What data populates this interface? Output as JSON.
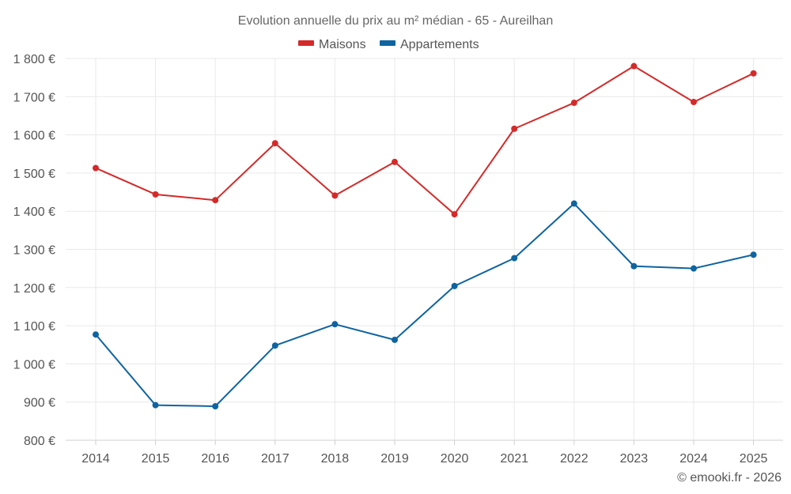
{
  "chart_data": {
    "type": "line",
    "title": "Evolution annuelle du prix au m² médian - 65 - Aureilhan",
    "categories": [
      "2014",
      "2015",
      "2016",
      "2017",
      "2018",
      "2019",
      "2020",
      "2021",
      "2022",
      "2023",
      "2024",
      "2025"
    ],
    "series": [
      {
        "name": "Maisons",
        "color": "#d42a2a",
        "values": [
          1513,
          1444,
          1429,
          1578,
          1441,
          1529,
          1392,
          1616,
          1684,
          1780,
          1686,
          1761
        ]
      },
      {
        "name": "Appartements",
        "color": "#0e64a0",
        "values": [
          1077,
          892,
          889,
          1048,
          1104,
          1063,
          1204,
          1277,
          1420,
          1256,
          1250,
          1286
        ]
      }
    ],
    "ylim": [
      800,
      1800
    ],
    "yticks": [
      "800 €",
      "900 €",
      "1 000 €",
      "1 100 €",
      "1 200 €",
      "1 300 €",
      "1 400 €",
      "1 500 €",
      "1 600 €",
      "1 700 €",
      "1 800 €"
    ],
    "ytick_values": [
      800,
      900,
      1000,
      1100,
      1200,
      1300,
      1400,
      1500,
      1600,
      1700,
      1800
    ],
    "xlabel": "",
    "ylabel": "",
    "grid": true,
    "legend_position": "top-center"
  },
  "credit": "© emooki.fr - 2026"
}
